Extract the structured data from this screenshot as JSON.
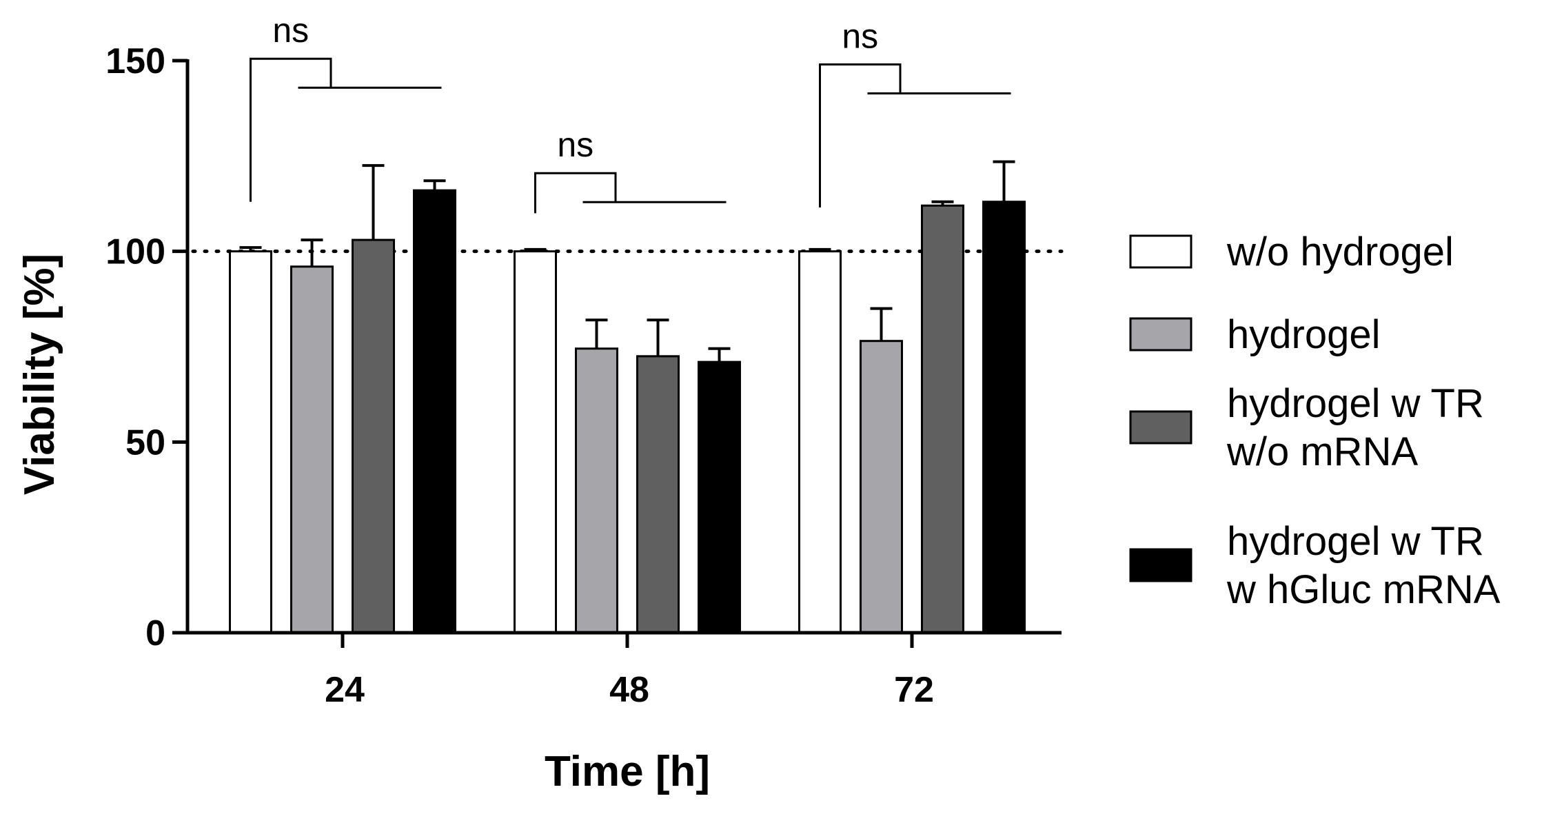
{
  "chart_data": {
    "type": "bar",
    "title": "",
    "xlabel": "Time [h]",
    "ylabel": "Viability [%]",
    "ylim": [
      0,
      150
    ],
    "yticks": [
      0,
      50,
      100,
      150
    ],
    "reference_line": 100,
    "categories": [
      "24",
      "48",
      "72"
    ],
    "series": [
      {
        "name": "w/o hydrogel",
        "color": "#ffffff",
        "values": [
          100,
          100,
          100
        ],
        "errors": [
          1,
          0.5,
          0.5
        ]
      },
      {
        "name": "hydrogel",
        "color": "#a6a6aa",
        "values": [
          96,
          74.5,
          76.5
        ],
        "errors": [
          7,
          7.5,
          8.5
        ]
      },
      {
        "name": "hydrogel w TR\nw/o mRNA",
        "color": "#606060",
        "values": [
          103,
          72.5,
          112
        ],
        "errors": [
          19.5,
          9.5,
          1
        ]
      },
      {
        "name": "hydrogel w TR\nw hGluc mRNA",
        "color": "#000000",
        "values": [
          116,
          71,
          113
        ],
        "errors": [
          2.5,
          3.5,
          10.5
        ]
      }
    ],
    "significance": [
      {
        "category": "24",
        "label": "ns",
        "height": 150.5
      },
      {
        "category": "48",
        "label": "ns",
        "height": 120.5
      },
      {
        "category": "72",
        "label": "ns",
        "height": 149
      }
    ],
    "legend_position": "right"
  }
}
